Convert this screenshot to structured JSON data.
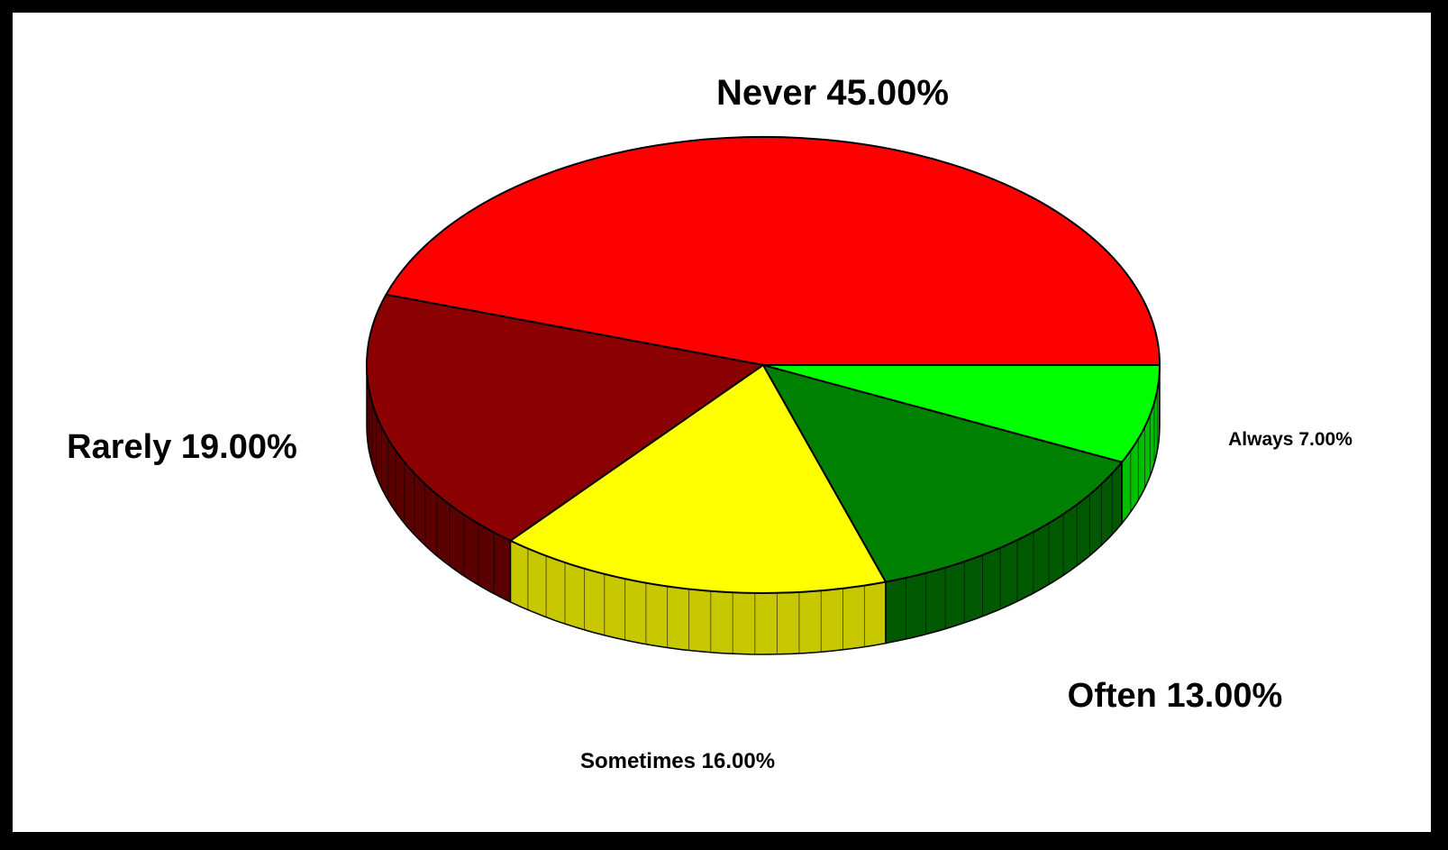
{
  "chart_data": {
    "type": "pie",
    "style": "3d",
    "title": "",
    "slices": [
      {
        "label": "Never",
        "value": 45.0,
        "text": "Never 45.00%",
        "color": "#ff0000",
        "side_color": "#c80000"
      },
      {
        "label": "Rarely",
        "value": 19.0,
        "text": "Rarely 19.00%",
        "color": "#8b0000",
        "side_color": "#5a0000"
      },
      {
        "label": "Sometimes",
        "value": 16.0,
        "text": "Sometimes 16.00%",
        "color": "#ffff00",
        "side_color": "#c8c800"
      },
      {
        "label": "Often",
        "value": 13.0,
        "text": "Often 13.00%",
        "color": "#008000",
        "side_color": "#005800"
      },
      {
        "label": "Always",
        "value": 7.0,
        "text": "Always 7.00%",
        "color": "#00ff00",
        "side_color": "#00c000"
      }
    ]
  }
}
